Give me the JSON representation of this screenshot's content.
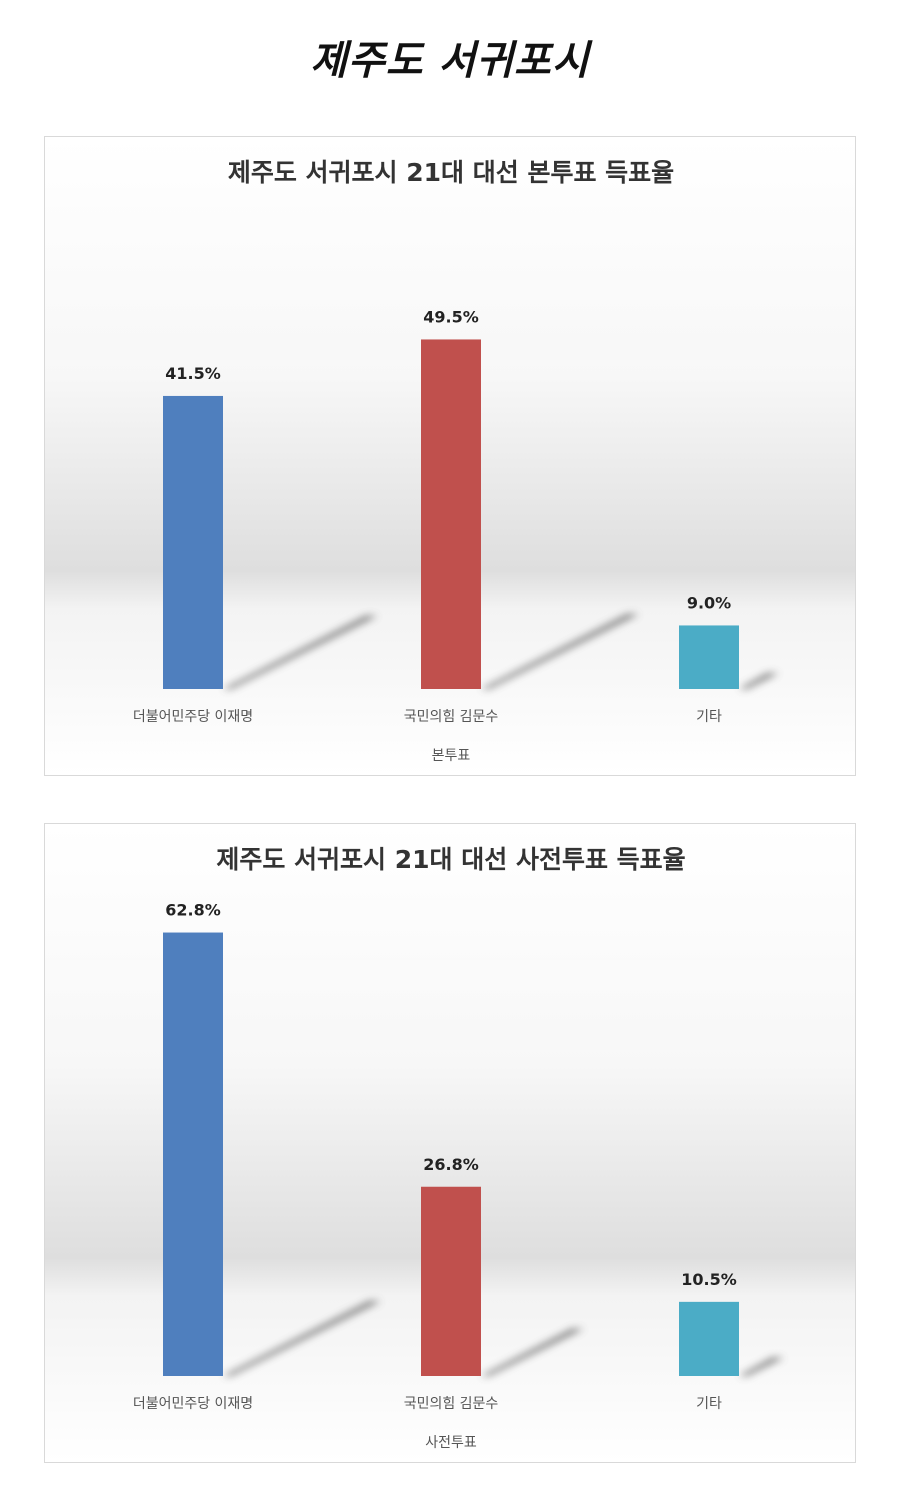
{
  "page": {
    "title": "제주도 서귀포시"
  },
  "chart_data": [
    {
      "type": "bar",
      "title": "제주도 서귀포시 21대 대선 본투표 득표율",
      "xlabel": "본투표",
      "ylabel": "",
      "ylim": [
        0,
        65
      ],
      "grid": false,
      "categories": [
        "더불어민주당 이재명",
        "국민의힘 김문수",
        "기타"
      ],
      "values": [
        41.5,
        49.5,
        9.0
      ],
      "value_labels": [
        "41.5%",
        "49.5%",
        "9.0%"
      ],
      "colors": [
        "#4f7fbe",
        "#c0504d",
        "#4bacc6"
      ]
    },
    {
      "type": "bar",
      "title": "제주도 서귀포시 21대 대선 사전투표 득표율",
      "xlabel": "사전투표",
      "ylabel": "",
      "ylim": [
        0,
        65
      ],
      "grid": false,
      "categories": [
        "더불어민주당 이재명",
        "국민의힘 김문수",
        "기타"
      ],
      "values": [
        62.8,
        26.8,
        10.5
      ],
      "value_labels": [
        "62.8%",
        "26.8%",
        "10.5%"
      ],
      "colors": [
        "#4f7fbe",
        "#c0504d",
        "#4bacc6"
      ]
    }
  ]
}
